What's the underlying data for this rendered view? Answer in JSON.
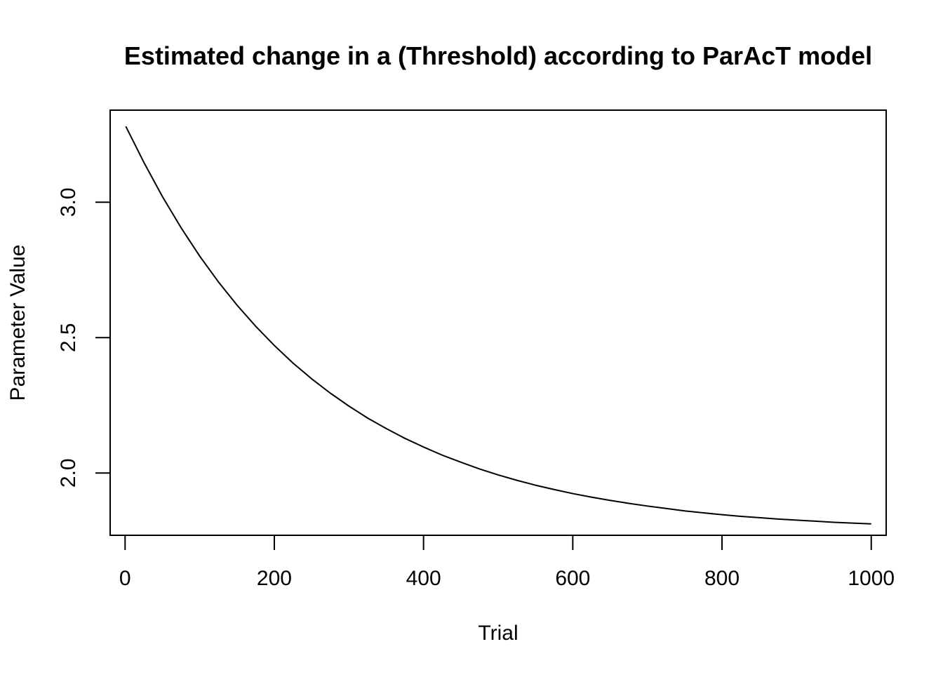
{
  "chart_data": {
    "type": "line",
    "title": "Estimated change in a (Threshold) according to ParAcT model",
    "xlabel": "Trial",
    "ylabel": "Parameter Value",
    "xlim": [
      -20,
      1020
    ],
    "ylim": [
      1.77,
      3.34
    ],
    "xticks": [
      0,
      200,
      400,
      600,
      800,
      1000
    ],
    "xtick_labels": [
      "0",
      "200",
      "400",
      "600",
      "800",
      "1000"
    ],
    "yticks": [
      2.0,
      2.5,
      3.0
    ],
    "ytick_labels": [
      "2.0",
      "2.5",
      "3.0"
    ],
    "grid": false,
    "legend": "none",
    "series": [
      {
        "color": "#000000",
        "x": [
          1,
          25,
          50,
          75,
          100,
          125,
          150,
          175,
          200,
          225,
          250,
          275,
          300,
          325,
          350,
          375,
          400,
          425,
          450,
          475,
          500,
          525,
          550,
          575,
          600,
          625,
          650,
          675,
          700,
          725,
          750,
          775,
          800,
          825,
          850,
          875,
          900,
          925,
          950,
          975,
          1000
        ],
        "y": [
          3.28,
          3.148,
          3.021,
          2.906,
          2.801,
          2.706,
          2.62,
          2.542,
          2.471,
          2.406,
          2.348,
          2.295,
          2.247,
          2.203,
          2.164,
          2.128,
          2.096,
          2.066,
          2.04,
          2.015,
          1.993,
          1.973,
          1.955,
          1.939,
          1.924,
          1.911,
          1.899,
          1.888,
          1.878,
          1.869,
          1.86,
          1.853,
          1.846,
          1.84,
          1.835,
          1.83,
          1.826,
          1.822,
          1.818,
          1.815,
          1.812
        ]
      }
    ]
  }
}
